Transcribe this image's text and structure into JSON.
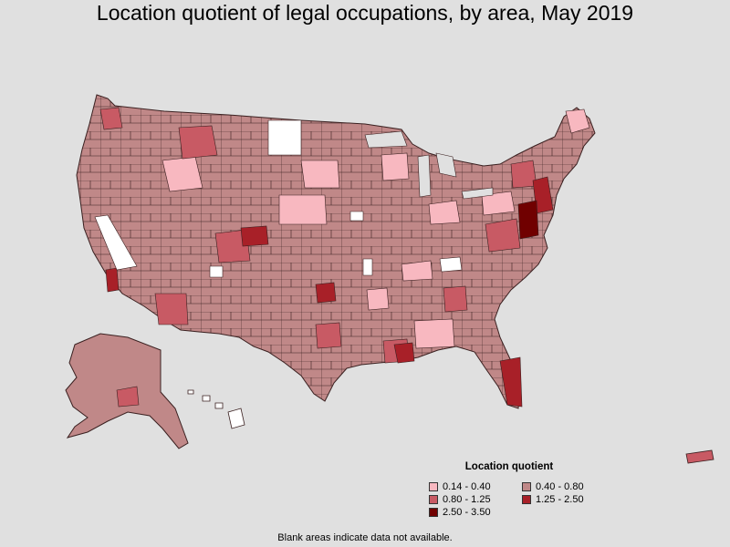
{
  "title": "Location quotient of legal occupations, by area, May 2019",
  "legend": {
    "title": "Location quotient",
    "items": [
      {
        "label": "0.14 - 0.40",
        "color": "#f8b8c0"
      },
      {
        "label": "0.40 - 0.80",
        "color": "#c08888"
      },
      {
        "label": "0.80 - 1.25",
        "color": "#c85a64"
      },
      {
        "label": "1.25 - 2.50",
        "color": "#a82028"
      },
      {
        "label": "2.50 - 3.50",
        "color": "#700000"
      }
    ]
  },
  "footnote": "Blank areas indicate data not available.",
  "colors": {
    "background": "#e0e0e0",
    "border": "#3a2020",
    "no_data": "#ffffff"
  }
}
